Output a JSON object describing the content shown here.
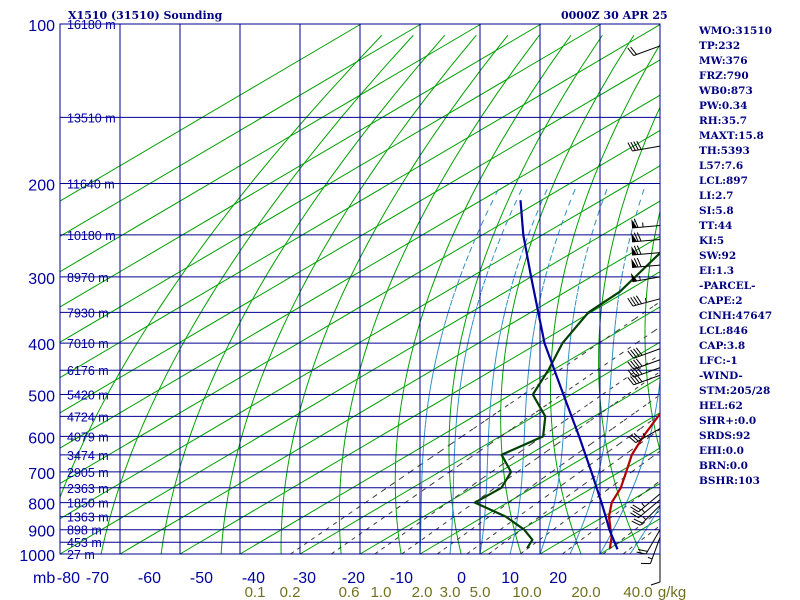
{
  "header": {
    "station": "X1510 (31510) Sounding",
    "time": "0000Z 30 APR 25"
  },
  "stats": [
    "WMO:31510",
    "TP:232",
    "MW:376",
    "FRZ:790",
    "WB0:873",
    "PW:0.34",
    "RH:35.7",
    "MAXT:15.8",
    "TH:5393",
    "L57:7.6",
    "LCL:897",
    "LI:2.7",
    "SI:5.8",
    "TT:44",
    "KI:5",
    "SW:92",
    "EI:1.3",
    "-PARCEL-",
    "CAPE:2",
    "CINH:47647",
    "LCL:846",
    "CAP:3.8",
    "LFC:-1",
    "-WIND-",
    "STM:205/28",
    "HEL:62",
    "SHR+:0.0",
    "SRDS:92",
    "EHI:0.0",
    "BRN:0.0",
    "BSHR:103"
  ],
  "colors": {
    "grid": "#000090",
    "dry_adiabat": "#00a000",
    "temperature": "#b00000",
    "dewpoint": "#004000",
    "parcel": "#0000a0",
    "mixing_ratio": "#3c3c3c",
    "moist_adiabat": "#3090c0",
    "label": "#0000a0",
    "mixing_label": "#707020"
  },
  "chart_data": {
    "type": "skew-t",
    "ylabel": "mb",
    "y_axis": "pressure (log), inverted",
    "ylim": [
      1000,
      100
    ],
    "xlim": [
      -80,
      20
    ],
    "pressure_ticks": [
      {
        "p": 100,
        "label": "100"
      },
      {
        "p": 200,
        "label": "200"
      },
      {
        "p": 300,
        "label": "300"
      },
      {
        "p": 400,
        "label": "400"
      },
      {
        "p": 500,
        "label": "500"
      },
      {
        "p": 600,
        "label": "600"
      },
      {
        "p": 700,
        "label": "700"
      },
      {
        "p": 800,
        "label": "800"
      },
      {
        "p": 900,
        "label": "900"
      },
      {
        "p": 1000,
        "label": "1000"
      }
    ],
    "temperature_ticks": [
      {
        "t": -80,
        "label": "-80"
      },
      {
        "t": -70,
        "label": "-70"
      },
      {
        "t": -60,
        "label": "-60"
      },
      {
        "t": -50,
        "label": "-50"
      },
      {
        "t": -40,
        "label": "-40"
      },
      {
        "t": -30,
        "label": "-30"
      },
      {
        "t": -20,
        "label": "-20"
      },
      {
        "t": -10,
        "label": "-10"
      },
      {
        "t": 0,
        "label": "0"
      },
      {
        "t": 10,
        "label": "10"
      },
      {
        "t": 20,
        "label": "20"
      }
    ],
    "height_labels": [
      {
        "p": 100,
        "label": "16180 m"
      },
      {
        "p": 150,
        "label": "13510 m"
      },
      {
        "p": 200,
        "label": "11640 m"
      },
      {
        "p": 250,
        "label": "10180 m"
      },
      {
        "p": 300,
        "label": "8970 m"
      },
      {
        "p": 350,
        "label": "7930 m"
      },
      {
        "p": 400,
        "label": "7010 m"
      },
      {
        "p": 450,
        "label": "6176 m"
      },
      {
        "p": 500,
        "label": "5420 m"
      },
      {
        "p": 550,
        "label": "4724 m"
      },
      {
        "p": 600,
        "label": "4079 m"
      },
      {
        "p": 650,
        "label": "3474 m"
      },
      {
        "p": 700,
        "label": "2905 m"
      },
      {
        "p": 750,
        "label": "2363 m"
      },
      {
        "p": 800,
        "label": "1850 m"
      },
      {
        "p": 850,
        "label": "1363 m"
      },
      {
        "p": 900,
        "label": "898 m"
      },
      {
        "p": 950,
        "label": "453 m"
      },
      {
        "p": 1000,
        "label": "27 m"
      }
    ],
    "mixing_ratio_labels": [
      "0.1",
      "0.2",
      "0.6",
      "1.0",
      "2.0",
      "3.0",
      "5.0",
      "10.0",
      "20.0",
      "40.0",
      "g/kg"
    ],
    "series": [
      {
        "name": "temperature",
        "points": [
          {
            "p": 975,
            "t": 10.0
          },
          {
            "p": 930,
            "t": 7.2
          },
          {
            "p": 900,
            "t": 4.9
          },
          {
            "p": 850,
            "t": 0.9
          },
          {
            "p": 800,
            "t": -2.6
          },
          {
            "p": 750,
            "t": -5.3
          },
          {
            "p": 700,
            "t": -8.9
          },
          {
            "p": 650,
            "t": -12.8
          },
          {
            "p": 600,
            "t": -16.1
          },
          {
            "p": 550,
            "t": -19.3
          },
          {
            "p": 500,
            "t": -22.6
          },
          {
            "p": 450,
            "t": -26.5
          },
          {
            "p": 400,
            "t": -30.7
          },
          {
            "p": 350,
            "t": -36.8
          },
          {
            "p": 300,
            "t": -40.6
          },
          {
            "p": 270,
            "t": -44.0
          },
          {
            "p": 250,
            "t": -50.4
          },
          {
            "p": 230,
            "t": -54.8
          },
          {
            "p": 200,
            "t": -57.8
          },
          {
            "p": 180,
            "t": -61.0
          },
          {
            "p": 160,
            "t": -64.4
          },
          {
            "p": 150,
            "t": -66.0
          },
          {
            "p": 130,
            "t": -68.0
          },
          {
            "p": 120,
            "t": -69.8
          },
          {
            "p": 110,
            "t": -73.4
          },
          {
            "p": 100,
            "t": -75.6
          }
        ]
      },
      {
        "name": "dewpoint",
        "points": [
          {
            "p": 975,
            "t": -3.8
          },
          {
            "p": 940,
            "t": -5.3
          },
          {
            "p": 900,
            "t": -9.5
          },
          {
            "p": 850,
            "t": -16.3
          },
          {
            "p": 800,
            "t": -25.4
          },
          {
            "p": 750,
            "t": -25.2
          },
          {
            "p": 700,
            "t": -28.1
          },
          {
            "p": 650,
            "t": -34.5
          },
          {
            "p": 600,
            "t": -32.8
          },
          {
            "p": 550,
            "t": -38.1
          },
          {
            "p": 500,
            "t": -46.4
          },
          {
            "p": 450,
            "t": -50.7
          },
          {
            "p": 400,
            "t": -56.0
          },
          {
            "p": 350,
            "t": -60.4
          },
          {
            "p": 320,
            "t": -61.0
          },
          {
            "p": 280,
            "t": -64.4
          },
          {
            "p": 250,
            "t": -67.2
          },
          {
            "p": 200,
            "t": -70.6
          },
          {
            "p": 170,
            "t": -74.1
          },
          {
            "p": 150,
            "t": -74.5
          },
          {
            "p": 140,
            "t": -76.1
          },
          {
            "p": 130,
            "t": -77.7
          },
          {
            "p": 120,
            "t": -78.5
          },
          {
            "p": 100,
            "t": -83.0
          }
        ]
      },
      {
        "name": "parcel",
        "points": [
          {
            "p": 980,
            "t": 11.6
          },
          {
            "p": 900,
            "t": 4.7
          },
          {
            "p": 846,
            "t": 0.0
          },
          {
            "p": 800,
            "t": -4.3
          },
          {
            "p": 700,
            "t": -14.7
          },
          {
            "p": 600,
            "t": -26.8
          },
          {
            "p": 500,
            "t": -41.3
          },
          {
            "p": 400,
            "t": -59.0
          },
          {
            "p": 300,
            "t": -80.0
          },
          {
            "p": 250,
            "t": -93.2
          },
          {
            "p": 215,
            "t": -103.5
          }
        ]
      }
    ],
    "wind_barbs": [
      {
        "p": 110,
        "dir": 250,
        "kt": 20
      },
      {
        "p": 170,
        "dir": 260,
        "kt": 40
      },
      {
        "p": 240,
        "dir": 265,
        "kt": 65
      },
      {
        "p": 255,
        "dir": 265,
        "kt": 70
      },
      {
        "p": 270,
        "dir": 265,
        "kt": 70
      },
      {
        "p": 285,
        "dir": 265,
        "kt": 70
      },
      {
        "p": 300,
        "dir": 260,
        "kt": 55
      },
      {
        "p": 330,
        "dir": 255,
        "kt": 45
      },
      {
        "p": 410,
        "dir": 250,
        "kt": 40
      },
      {
        "p": 430,
        "dir": 250,
        "kt": 40
      },
      {
        "p": 445,
        "dir": 250,
        "kt": 40
      },
      {
        "p": 460,
        "dir": 250,
        "kt": 40
      },
      {
        "p": 580,
        "dir": 240,
        "kt": 35
      },
      {
        "p": 770,
        "dir": 230,
        "kt": 25
      },
      {
        "p": 790,
        "dir": 230,
        "kt": 25
      },
      {
        "p": 810,
        "dir": 225,
        "kt": 25
      },
      {
        "p": 900,
        "dir": 210,
        "kt": 20
      },
      {
        "p": 930,
        "dir": 200,
        "kt": 15
      },
      {
        "p": 1000,
        "dir": 180,
        "kt": 10
      }
    ]
  }
}
